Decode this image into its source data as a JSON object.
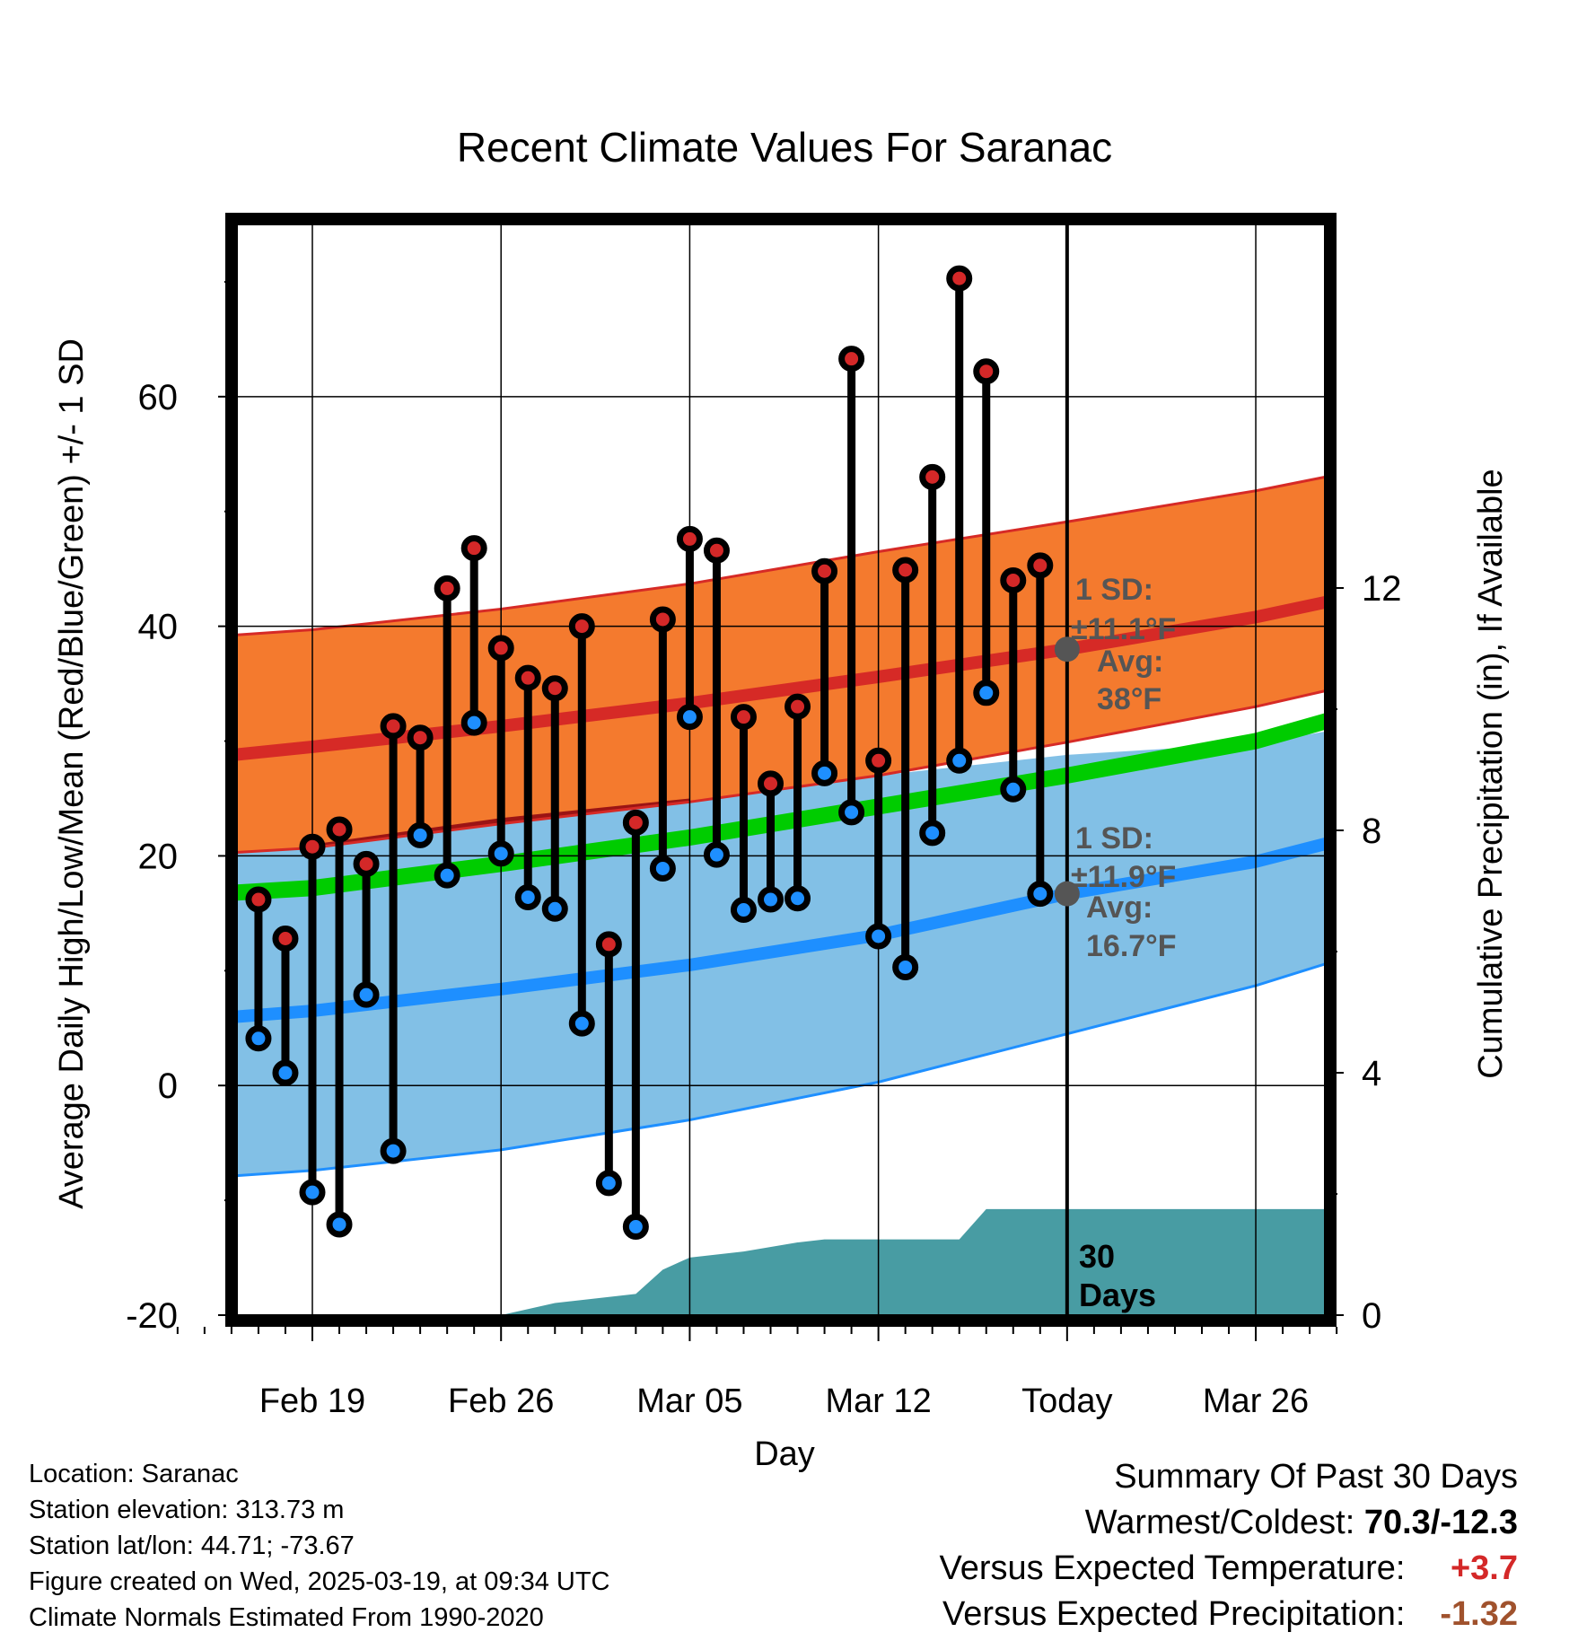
{
  "chart_data": {
    "type": "line",
    "title": "Recent Climate Values For Saranac",
    "xlabel": "Day",
    "ylabel_left": "Average Daily High/Low/Mean (Red/Blue/Green) +/- 1 SD",
    "ylabel_right": "Cumulative Precipitation (in), If Available",
    "ylim_left": [
      -20,
      75
    ],
    "ylim_right": [
      0,
      18
    ],
    "grid": true,
    "x_tick_labels": [
      {
        "date": "2025-02-19",
        "label": "Feb 19"
      },
      {
        "date": "2025-02-26",
        "label": "Feb 26"
      },
      {
        "date": "2025-03-05",
        "label": "Mar 05"
      },
      {
        "date": "2025-03-12",
        "label": "Mar 12"
      },
      {
        "date": "2025-03-19",
        "label": "Today"
      },
      {
        "date": "2025-03-26",
        "label": "Mar 26"
      }
    ],
    "y_ticks_left": [
      -20,
      0,
      20,
      40,
      60
    ],
    "y_ticks_right": [
      0,
      4,
      8,
      12
    ],
    "daily": [
      {
        "date": "2025-02-17",
        "high": 16.2,
        "low": 4.1
      },
      {
        "date": "2025-02-18",
        "high": 12.8,
        "low": 1.1
      },
      {
        "date": "2025-02-19",
        "high": 20.8,
        "low": -9.3
      },
      {
        "date": "2025-02-20",
        "high": 22.3,
        "low": -12.1
      },
      {
        "date": "2025-02-21",
        "high": 19.3,
        "low": 7.9
      },
      {
        "date": "2025-02-22",
        "high": 31.3,
        "low": -5.7
      },
      {
        "date": "2025-02-23",
        "high": 30.3,
        "low": 21.8
      },
      {
        "date": "2025-02-24",
        "high": 43.3,
        "low": 18.3
      },
      {
        "date": "2025-02-25",
        "high": 46.8,
        "low": 31.6
      },
      {
        "date": "2025-02-26",
        "high": 38.1,
        "low": 20.2
      },
      {
        "date": "2025-02-27",
        "high": 35.5,
        "low": 16.4
      },
      {
        "date": "2025-02-28",
        "high": 34.6,
        "low": 15.4
      },
      {
        "date": "2025-03-01",
        "high": 40.0,
        "low": 5.4
      },
      {
        "date": "2025-03-02",
        "high": 12.3,
        "low": -8.5
      },
      {
        "date": "2025-03-03",
        "high": 22.9,
        "low": -12.3
      },
      {
        "date": "2025-03-04",
        "high": 40.6,
        "low": 18.9
      },
      {
        "date": "2025-03-05",
        "high": 47.6,
        "low": 32.1
      },
      {
        "date": "2025-03-06",
        "high": 46.6,
        "low": 20.1
      },
      {
        "date": "2025-03-07",
        "high": 32.1,
        "low": 15.3
      },
      {
        "date": "2025-03-08",
        "high": 26.3,
        "low": 16.2
      },
      {
        "date": "2025-03-09",
        "high": 33.0,
        "low": 16.3
      },
      {
        "date": "2025-03-10",
        "high": 44.8,
        "low": 27.2
      },
      {
        "date": "2025-03-11",
        "high": 63.3,
        "low": 23.8
      },
      {
        "date": "2025-03-12",
        "high": 28.3,
        "low": 13.0
      },
      {
        "date": "2025-03-13",
        "high": 44.9,
        "low": 10.3
      },
      {
        "date": "2025-03-14",
        "high": 53.0,
        "low": 22.0
      },
      {
        "date": "2025-03-15",
        "high": 70.3,
        "low": 28.3
      },
      {
        "date": "2025-03-16",
        "high": 62.2,
        "low": 34.2
      },
      {
        "date": "2025-03-17",
        "high": 44.0,
        "low": 25.8
      },
      {
        "date": "2025-03-18",
        "high": 45.3,
        "low": 16.7
      }
    ],
    "normals": {
      "dates": [
        "2025-02-14",
        "2025-02-19",
        "2025-02-26",
        "2025-03-05",
        "2025-03-12",
        "2025-03-19",
        "2025-03-26",
        "2025-03-29"
      ],
      "high_mean": [
        28.3,
        29.5,
        31.3,
        33.3,
        35.6,
        38.0,
        40.8,
        42.3
      ],
      "high_upper": [
        38.9,
        39.7,
        41.5,
        43.7,
        46.5,
        49.1,
        51.8,
        53.2
      ],
      "high_lower": [
        20.0,
        20.7,
        22.8,
        24.7,
        27.0,
        29.9,
        33.0,
        34.6
      ],
      "low_mean": [
        5.6,
        6.5,
        8.4,
        10.5,
        13.1,
        16.7,
        19.5,
        21.3
      ],
      "low_upper": [
        20.0,
        21.0,
        23.3,
        25.0,
        27.0,
        28.8,
        29.8,
        31.0
      ],
      "low_lower": [
        -8.2,
        -7.4,
        -5.6,
        -3.0,
        0.3,
        4.5,
        8.7,
        10.9
      ],
      "avg_mean": [
        16.5,
        17.2,
        19.3,
        21.6,
        24.3,
        27.0,
        30.0,
        32.0
      ]
    },
    "precip_cumulative": {
      "dates": [
        "2025-02-26",
        "2025-02-28",
        "2025-03-03",
        "2025-03-04",
        "2025-03-05",
        "2025-03-07",
        "2025-03-09",
        "2025-03-10",
        "2025-03-15",
        "2025-03-16",
        "2025-03-29"
      ],
      "values": [
        0.0,
        0.2,
        0.35,
        0.75,
        0.95,
        1.05,
        1.2,
        1.25,
        1.25,
        1.75,
        1.75
      ]
    },
    "annotations": {
      "high_sd_label": "1 SD:",
      "high_sd_value": "±11.1°F",
      "high_avg_label": "Avg:",
      "high_avg_value": "38°F",
      "low_sd_label": "1 SD:",
      "low_sd_value": "±11.9°F",
      "low_avg_label": "Avg:",
      "low_avg_value": "16.7°F",
      "high_avg": 38.0,
      "low_avg": 16.7,
      "window_label_1": "30",
      "window_label_2": "Days"
    },
    "colors": {
      "high_band": "#f47a2e",
      "high_mean": "#d62a26",
      "low_band": "#82c0e6",
      "low_mean": "#1e8fff",
      "low_band_edge": "#1e8fff",
      "avg_mean": "#00cc00",
      "overlap": "#9b1414",
      "precip": "#489ca3",
      "high_marker": "#d42828",
      "low_marker": "#1e8fff",
      "annotation_text": "#555555",
      "avg_dot": "#555555"
    }
  },
  "info": {
    "location": "Location: Saranac",
    "elevation": "Station elevation: 313.73 m",
    "latlon": "Station lat/lon: 44.71; -73.67",
    "created": "Figure created on Wed, 2025-03-19, at 09:34 UTC",
    "normals": "Climate Normals Estimated From 1990-2020"
  },
  "summary": {
    "title": "Summary Of Past 30 Days",
    "warm_cold_label": "Warmest/Coldest:",
    "warm_cold_value": "70.3/-12.3",
    "temp_label": "Versus Expected Temperature:",
    "temp_value": "+3.7",
    "temp_color": "#d42828",
    "precip_label": "Versus Expected Precipitation:",
    "precip_value": "-1.32",
    "precip_color": "#a0522d"
  }
}
